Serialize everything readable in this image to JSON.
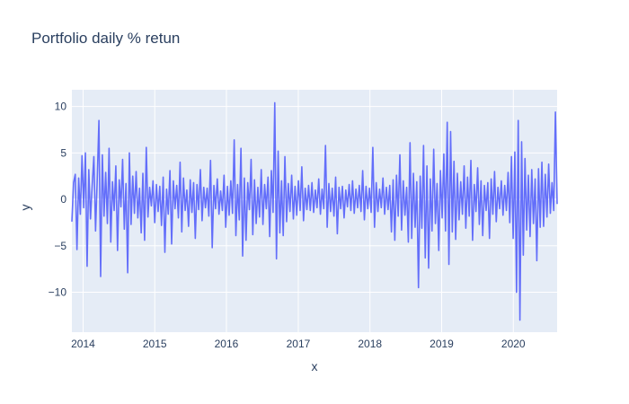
{
  "chart_data": {
    "type": "line",
    "title": "Portfolio daily % retun",
    "xlabel": "x",
    "ylabel": "y",
    "xlim": [
      "2013-11-05",
      "2020-08-11"
    ],
    "ylim": [
      -14.3,
      11.8
    ],
    "x_tick_labels": [
      "2014",
      "2015",
      "2016",
      "2017",
      "2018",
      "2019",
      "2020"
    ],
    "y_tick_labels": [
      "10",
      "5",
      "0",
      "−5",
      "−10"
    ],
    "y_tick_values": [
      10,
      5,
      0,
      -5,
      -10
    ],
    "grid": true,
    "legend": "none",
    "series": [
      {
        "start": "2013-11-05",
        "end": "2020-08-11",
        "values_daily": [
          -2.4,
          1.8,
          2.7,
          -5.4,
          2.3,
          -1.6,
          4.7,
          -0.9,
          5.0,
          -7.2,
          3.2,
          -2.1,
          1.5,
          4.6,
          -3.4,
          2.2,
          8.5,
          -8.3,
          4.8,
          -1.8,
          2.9,
          -2.6,
          5.5,
          -4.6,
          1.9,
          -1.2,
          3.6,
          -5.5,
          2.1,
          -0.8,
          4.3,
          -3.2,
          1.7,
          -7.9,
          5.0,
          -2.7,
          2.5,
          -1.5,
          3.0,
          -2.0,
          1.2,
          -3.6,
          2.8,
          -4.4,
          5.6,
          -1.9,
          1.3,
          -0.7,
          2.0,
          -2.5,
          1.6,
          -1.3,
          1.4,
          -2.8,
          2.4,
          -5.7,
          1.1,
          -1.6,
          3.1,
          -4.8,
          2.0,
          -1.0,
          1.5,
          -2.0,
          4.0,
          -3.5,
          2.3,
          -1.2,
          1.0,
          -2.9,
          2.1,
          -1.4,
          1.8,
          -4.2,
          1.6,
          -1.1,
          3.2,
          -2.3,
          1.3,
          -0.9,
          1.2,
          -1.8,
          4.2,
          -5.2,
          1.5,
          -1.0,
          2.2,
          -1.6,
          0.9,
          -1.2,
          2.6,
          -3.0,
          1.4,
          -1.7,
          2.0,
          -1.5,
          6.4,
          -3.9,
          1.6,
          -2.2,
          5.5,
          -6.1,
          2.3,
          -4.4,
          1.8,
          -1.1,
          4.3,
          -3.8,
          2.1,
          -2.6,
          1.3,
          -1.9,
          3.2,
          -2.7,
          1.6,
          -1.0,
          2.4,
          -4.0,
          3.1,
          -1.4,
          10.4,
          -6.4,
          5.2,
          -3.6,
          2.0,
          -3.9,
          4.6,
          -2.4,
          1.7,
          -1.3,
          2.6,
          -2.1,
          1.4,
          -1.7,
          2.0,
          -1.2,
          3.5,
          -2.3,
          1.2,
          -1.1,
          1.5,
          -1.2,
          1.8,
          -1.4,
          1.0,
          -0.9,
          2.2,
          -1.6,
          1.1,
          -1.0,
          5.8,
          -3.0,
          1.7,
          -1.3,
          1.2,
          -1.8,
          2.4,
          -3.7,
          1.3,
          -1.0,
          1.4,
          -2.0,
          1.0,
          -0.8,
          1.6,
          -1.2,
          2.0,
          -1.5,
          1.1,
          -0.9,
          1.5,
          -1.3,
          3.1,
          -2.2,
          1.4,
          -1.0,
          1.2,
          -1.4,
          5.6,
          -3.0,
          1.8,
          -1.3,
          1.1,
          -0.9,
          2.3,
          -1.6,
          1.3,
          -1.1,
          1.5,
          -3.5,
          2.1,
          -4.4,
          2.6,
          -1.8,
          4.8,
          -3.3,
          2.0,
          -1.7,
          1.3,
          -4.6,
          6.1,
          -4.2,
          2.8,
          -3.0,
          1.9,
          -9.5,
          2.5,
          -3.1,
          5.8,
          -6.3,
          3.6,
          -7.4,
          2.2,
          -3.4,
          5.4,
          -2.6,
          1.7,
          -5.5,
          3.1,
          -2.0,
          4.9,
          -3.4,
          8.3,
          -7.0,
          7.3,
          -3.5,
          4.1,
          -4.3,
          2.8,
          -2.2,
          1.9,
          -1.6,
          3.6,
          -3.1,
          2.4,
          -1.8,
          4.2,
          -4.4,
          1.6,
          -1.3,
          3.4,
          -2.7,
          2.0,
          -3.9,
          1.5,
          -1.2,
          1.8,
          -4.2,
          2.2,
          -1.6,
          3.0,
          -2.4,
          1.3,
          -1.0,
          2.0,
          -1.7,
          1.5,
          -1.2,
          2.9,
          -2.5,
          4.6,
          -4.2,
          5.1,
          -10.0,
          8.5,
          -13.0,
          6.2,
          -6.0,
          4.4,
          -3.3,
          2.6,
          -4.0,
          3.2,
          -2.6,
          2.2,
          -6.6,
          3.3,
          -3.0,
          4.0,
          -2.9,
          2.7,
          -1.9,
          3.8,
          -1.5,
          1.8,
          -1.2,
          9.4,
          -0.5
        ]
      }
    ]
  }
}
